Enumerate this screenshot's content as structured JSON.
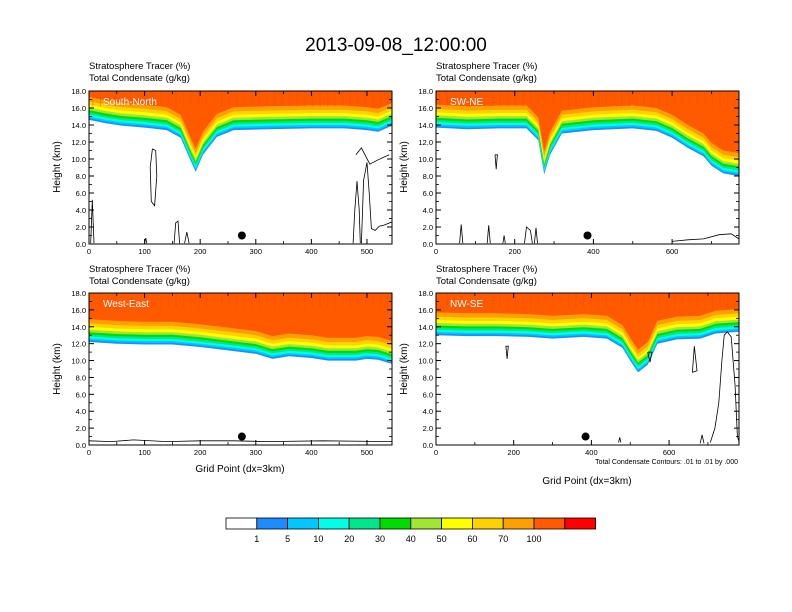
{
  "title": "2013-09-08_12:00:00",
  "variable_labels": {
    "tracer": "Stratosphere Tracer   (%)",
    "condensate": "Total Condensate   (g/kg)"
  },
  "axis": {
    "ylabel": "Height (km)",
    "xlabel": "Grid Point (dx=3km)",
    "y_ticks": [
      "0.0",
      "2.0",
      "4.0",
      "6.0",
      "8.0",
      "10.0",
      "12.0",
      "14.0",
      "16.0",
      "18.0"
    ],
    "ylim": [
      0,
      18
    ]
  },
  "contour_note": "Total Condensate Contours: .01 to .01 by .000",
  "colors": {
    "levels": [
      "#ffffff",
      "#1e8cff",
      "#00c8ff",
      "#00ffe6",
      "#00e68c",
      "#00dc00",
      "#a0e632",
      "#ffff00",
      "#ffd200",
      "#ffa000",
      "#ff5a00",
      "#ff0000"
    ]
  },
  "colorbar": {
    "labels": [
      "1",
      "5",
      "10",
      "20",
      "30",
      "40",
      "50",
      "60",
      "70",
      "100"
    ]
  },
  "chart_data": [
    {
      "type": "contour",
      "name": "South-North",
      "x_ticks": [
        0,
        100,
        200,
        300,
        400,
        500
      ],
      "xlim": [
        0,
        545
      ],
      "ylim": [
        0,
        18
      ],
      "marker": [
        275,
        1.0
      ],
      "tracer_base_km": [
        [
          0,
          14.6
        ],
        [
          30,
          14.2
        ],
        [
          60,
          13.9
        ],
        [
          100,
          13.7
        ],
        [
          140,
          13.4
        ],
        [
          165,
          12.5
        ],
        [
          180,
          10.2
        ],
        [
          192,
          8.5
        ],
        [
          205,
          10.5
        ],
        [
          230,
          12.6
        ],
        [
          260,
          13.4
        ],
        [
          320,
          13.5
        ],
        [
          400,
          13.6
        ],
        [
          460,
          13.6
        ],
        [
          500,
          13.4
        ],
        [
          520,
          13.2
        ],
        [
          545,
          13.9
        ]
      ],
      "condensate_contours_km": [
        [
          [
            100,
            0.1
          ],
          [
            102,
            0.7
          ],
          [
            104,
            0.1
          ]
        ],
        [
          [
            153,
            0.1
          ],
          [
            156,
            2.5
          ],
          [
            160,
            2.7
          ],
          [
            163,
            0.1
          ]
        ],
        [
          [
            172,
            0.1
          ],
          [
            176,
            1.4
          ],
          [
            180,
            0.1
          ]
        ],
        [
          [
            3,
            0.1
          ],
          [
            6,
            5.2
          ],
          [
            9,
            0.1
          ]
        ],
        [
          [
            114,
            11.2
          ],
          [
            110,
            9
          ],
          [
            112,
            5
          ],
          [
            118,
            4.5
          ],
          [
            122,
            8
          ],
          [
            120,
            11
          ],
          [
            114,
            11.2
          ]
        ],
        [
          [
            475,
            0.1
          ],
          [
            478,
            4
          ],
          [
            482,
            7.4
          ],
          [
            486,
            4
          ],
          [
            488,
            0.1
          ]
        ],
        [
          [
            490,
            0.1
          ],
          [
            494,
            7.5
          ],
          [
            500,
            9.6
          ],
          [
            504,
            6
          ],
          [
            508,
            1.8
          ],
          [
            515,
            1.6
          ],
          [
            522,
            2.1
          ],
          [
            530,
            2.2
          ],
          [
            545,
            2.6
          ]
        ],
        [
          [
            480,
            10.5
          ],
          [
            490,
            11.3
          ],
          [
            505,
            9.4
          ],
          [
            520,
            9.9
          ],
          [
            540,
            10.5
          ]
        ]
      ]
    },
    {
      "type": "contour",
      "name": "SW-NE",
      "x_ticks": [
        0,
        200,
        400,
        600
      ],
      "xlim": [
        0,
        770
      ],
      "ylim": [
        0,
        18
      ],
      "marker": [
        385,
        1.0
      ],
      "tracer_base_km": [
        [
          0,
          13.7
        ],
        [
          80,
          13.5
        ],
        [
          160,
          13.6
        ],
        [
          230,
          13.6
        ],
        [
          260,
          12.2
        ],
        [
          275,
          8.2
        ],
        [
          290,
          10.5
        ],
        [
          320,
          13.0
        ],
        [
          400,
          13.4
        ],
        [
          500,
          13.6
        ],
        [
          560,
          13.3
        ],
        [
          600,
          12.5
        ],
        [
          640,
          11.3
        ],
        [
          680,
          10.3
        ],
        [
          700,
          9.2
        ],
        [
          730,
          8.3
        ],
        [
          770,
          8.0
        ]
      ],
      "condensate_contours_km": [
        [
          [
            60,
            0.1
          ],
          [
            64,
            2.3
          ],
          [
            68,
            0.1
          ]
        ],
        [
          [
            130,
            0.1
          ],
          [
            134,
            2.2
          ],
          [
            138,
            0.1
          ]
        ],
        [
          [
            250,
            0.1
          ],
          [
            254,
            1.9
          ],
          [
            258,
            0.1
          ]
        ],
        [
          [
            225,
            0.1
          ],
          [
            230,
            2.0
          ],
          [
            240,
            1.6
          ],
          [
            245,
            0.1
          ]
        ],
        [
          [
            170,
            0.1
          ],
          [
            173,
            1.0
          ],
          [
            176,
            0.1
          ]
        ],
        [
          [
            150,
            10.5
          ],
          [
            153,
            8.8
          ],
          [
            156,
            10.5
          ],
          [
            150,
            10.5
          ]
        ],
        [
          [
            600,
            0.3
          ],
          [
            640,
            0.5
          ],
          [
            680,
            0.6
          ],
          [
            720,
            1.1
          ],
          [
            750,
            1.2
          ],
          [
            770,
            0.6
          ]
        ]
      ]
    },
    {
      "type": "contour",
      "name": "West-East",
      "x_ticks": [
        0,
        100,
        200,
        300,
        400,
        500
      ],
      "xlim": [
        0,
        545
      ],
      "ylim": [
        0,
        18
      ],
      "marker": [
        275,
        1.0
      ],
      "tracer_base_km": [
        [
          0,
          12.2
        ],
        [
          50,
          12.0
        ],
        [
          100,
          11.9
        ],
        [
          150,
          11.9
        ],
        [
          200,
          11.6
        ],
        [
          250,
          11.2
        ],
        [
          300,
          10.8
        ],
        [
          330,
          10.2
        ],
        [
          360,
          10.5
        ],
        [
          400,
          10.3
        ],
        [
          430,
          10.0
        ],
        [
          480,
          10.0
        ],
        [
          500,
          10.2
        ],
        [
          520,
          10.1
        ],
        [
          545,
          9.6
        ]
      ],
      "condensate_contours_km": [
        [
          [
            0,
            0.5
          ],
          [
            40,
            0.4
          ],
          [
            80,
            0.6
          ],
          [
            140,
            0.4
          ],
          [
            200,
            0.5
          ],
          [
            260,
            0.5
          ],
          [
            320,
            0.4
          ],
          [
            420,
            0.5
          ],
          [
            545,
            0.4
          ]
        ]
      ]
    },
    {
      "type": "contour",
      "name": "NW-SE",
      "x_ticks": [
        0,
        200,
        400,
        600
      ],
      "xlim": [
        0,
        780
      ],
      "ylim": [
        0,
        18
      ],
      "marker": [
        385,
        1.0
      ],
      "tracer_base_km": [
        [
          0,
          13.0
        ],
        [
          80,
          12.9
        ],
        [
          160,
          12.9
        ],
        [
          240,
          12.8
        ],
        [
          300,
          12.6
        ],
        [
          380,
          12.8
        ],
        [
          440,
          12.6
        ],
        [
          480,
          11.5
        ],
        [
          500,
          10.0
        ],
        [
          520,
          8.6
        ],
        [
          545,
          9.5
        ],
        [
          570,
          12.0
        ],
        [
          620,
          12.5
        ],
        [
          680,
          12.6
        ],
        [
          720,
          13.2
        ],
        [
          780,
          13.4
        ]
      ],
      "condensate_contours_km": [
        [
          [
            180,
            11.7
          ],
          [
            183,
            10.2
          ],
          [
            186,
            11.7
          ],
          [
            180,
            11.7
          ]
        ],
        [
          [
            545,
            11.0
          ],
          [
            551,
            9.8
          ],
          [
            556,
            11.0
          ],
          [
            545,
            11.0
          ]
        ],
        [
          [
            660,
            8.6
          ],
          [
            665,
            11.7
          ],
          [
            672,
            8.8
          ],
          [
            660,
            8.6
          ]
        ],
        [
          [
            706,
            0.3
          ],
          [
            718,
            2.0
          ],
          [
            728,
            5.0
          ],
          [
            736,
            10.0
          ],
          [
            742,
            13.0
          ],
          [
            750,
            13.4
          ],
          [
            760,
            12.8
          ],
          [
            770,
            7.0
          ],
          [
            776,
            1.0
          ],
          [
            780,
            0.4
          ]
        ],
        [
          [
            680,
            0.2
          ],
          [
            685,
            1.2
          ],
          [
            690,
            0.2
          ]
        ],
        [
          [
            470,
            0.3
          ],
          [
            473,
            0.9
          ],
          [
            476,
            0.3
          ]
        ]
      ]
    }
  ]
}
